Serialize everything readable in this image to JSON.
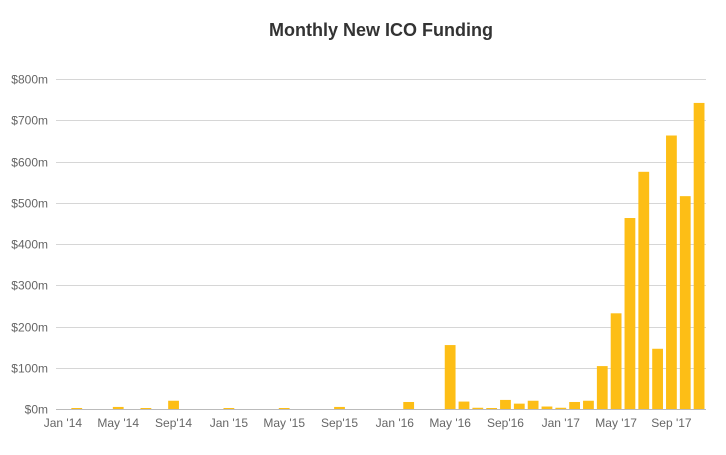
{
  "chart_data": {
    "type": "bar",
    "title": "Monthly New ICO Funding",
    "xlabel": "",
    "ylabel": "",
    "ylim": [
      0,
      800
    ],
    "yticks": [
      0,
      100,
      200,
      300,
      400,
      500,
      600,
      700,
      800
    ],
    "ytick_labels": [
      "$0m",
      "$100m",
      "$200m",
      "$300m",
      "$400m",
      "$500m",
      "$600m",
      "$700m",
      "$800m"
    ],
    "x_tick_labels": [
      {
        "index": 0,
        "label": "Jan '14"
      },
      {
        "index": 4,
        "label": "May '14"
      },
      {
        "index": 8,
        "label": "Sep'14"
      },
      {
        "index": 12,
        "label": "Jan '15"
      },
      {
        "index": 16,
        "label": "May '15"
      },
      {
        "index": 20,
        "label": "Sep'15"
      },
      {
        "index": 24,
        "label": "Jan '16"
      },
      {
        "index": 28,
        "label": "May '16"
      },
      {
        "index": 32,
        "label": "Sep'16"
      },
      {
        "index": 36,
        "label": "Jan '17"
      },
      {
        "index": 40,
        "label": "May '17"
      },
      {
        "index": 44,
        "label": "Sep '17"
      }
    ],
    "categories": [
      "Jan 2014",
      "Feb 2014",
      "Mar 2014",
      "Apr 2014",
      "May 2014",
      "Jun 2014",
      "Jul 2014",
      "Aug 2014",
      "Sep 2014",
      "Oct 2014",
      "Nov 2014",
      "Dec 2014",
      "Jan 2015",
      "Feb 2015",
      "Mar 2015",
      "Apr 2015",
      "May 2015",
      "Jun 2015",
      "Jul 2015",
      "Aug 2015",
      "Sep 2015",
      "Oct 2015",
      "Nov 2015",
      "Dec 2015",
      "Jan 2016",
      "Feb 2016",
      "Mar 2016",
      "Apr 2016",
      "May 2016",
      "Jun 2016",
      "Jul 2016",
      "Aug 2016",
      "Sep 2016",
      "Oct 2016",
      "Nov 2016",
      "Dec 2016",
      "Jan 2017",
      "Feb 2017",
      "Mar 2017",
      "Apr 2017",
      "May 2017",
      "Jun 2017",
      "Jul 2017",
      "Aug 2017",
      "Sep 2017",
      "Oct 2017",
      "Nov 2017"
    ],
    "values": [
      0,
      1,
      0,
      0,
      5,
      0,
      1,
      0,
      20,
      0,
      0,
      0,
      1,
      0,
      0,
      0,
      1,
      0,
      0,
      0,
      5,
      0,
      0,
      0,
      0,
      17,
      0,
      0,
      155,
      18,
      3,
      2,
      22,
      13,
      20,
      6,
      3,
      17,
      20,
      104,
      232,
      463,
      575,
      146,
      663,
      516,
      742
    ],
    "bar_color": "#FDBE16",
    "grid": true
  }
}
